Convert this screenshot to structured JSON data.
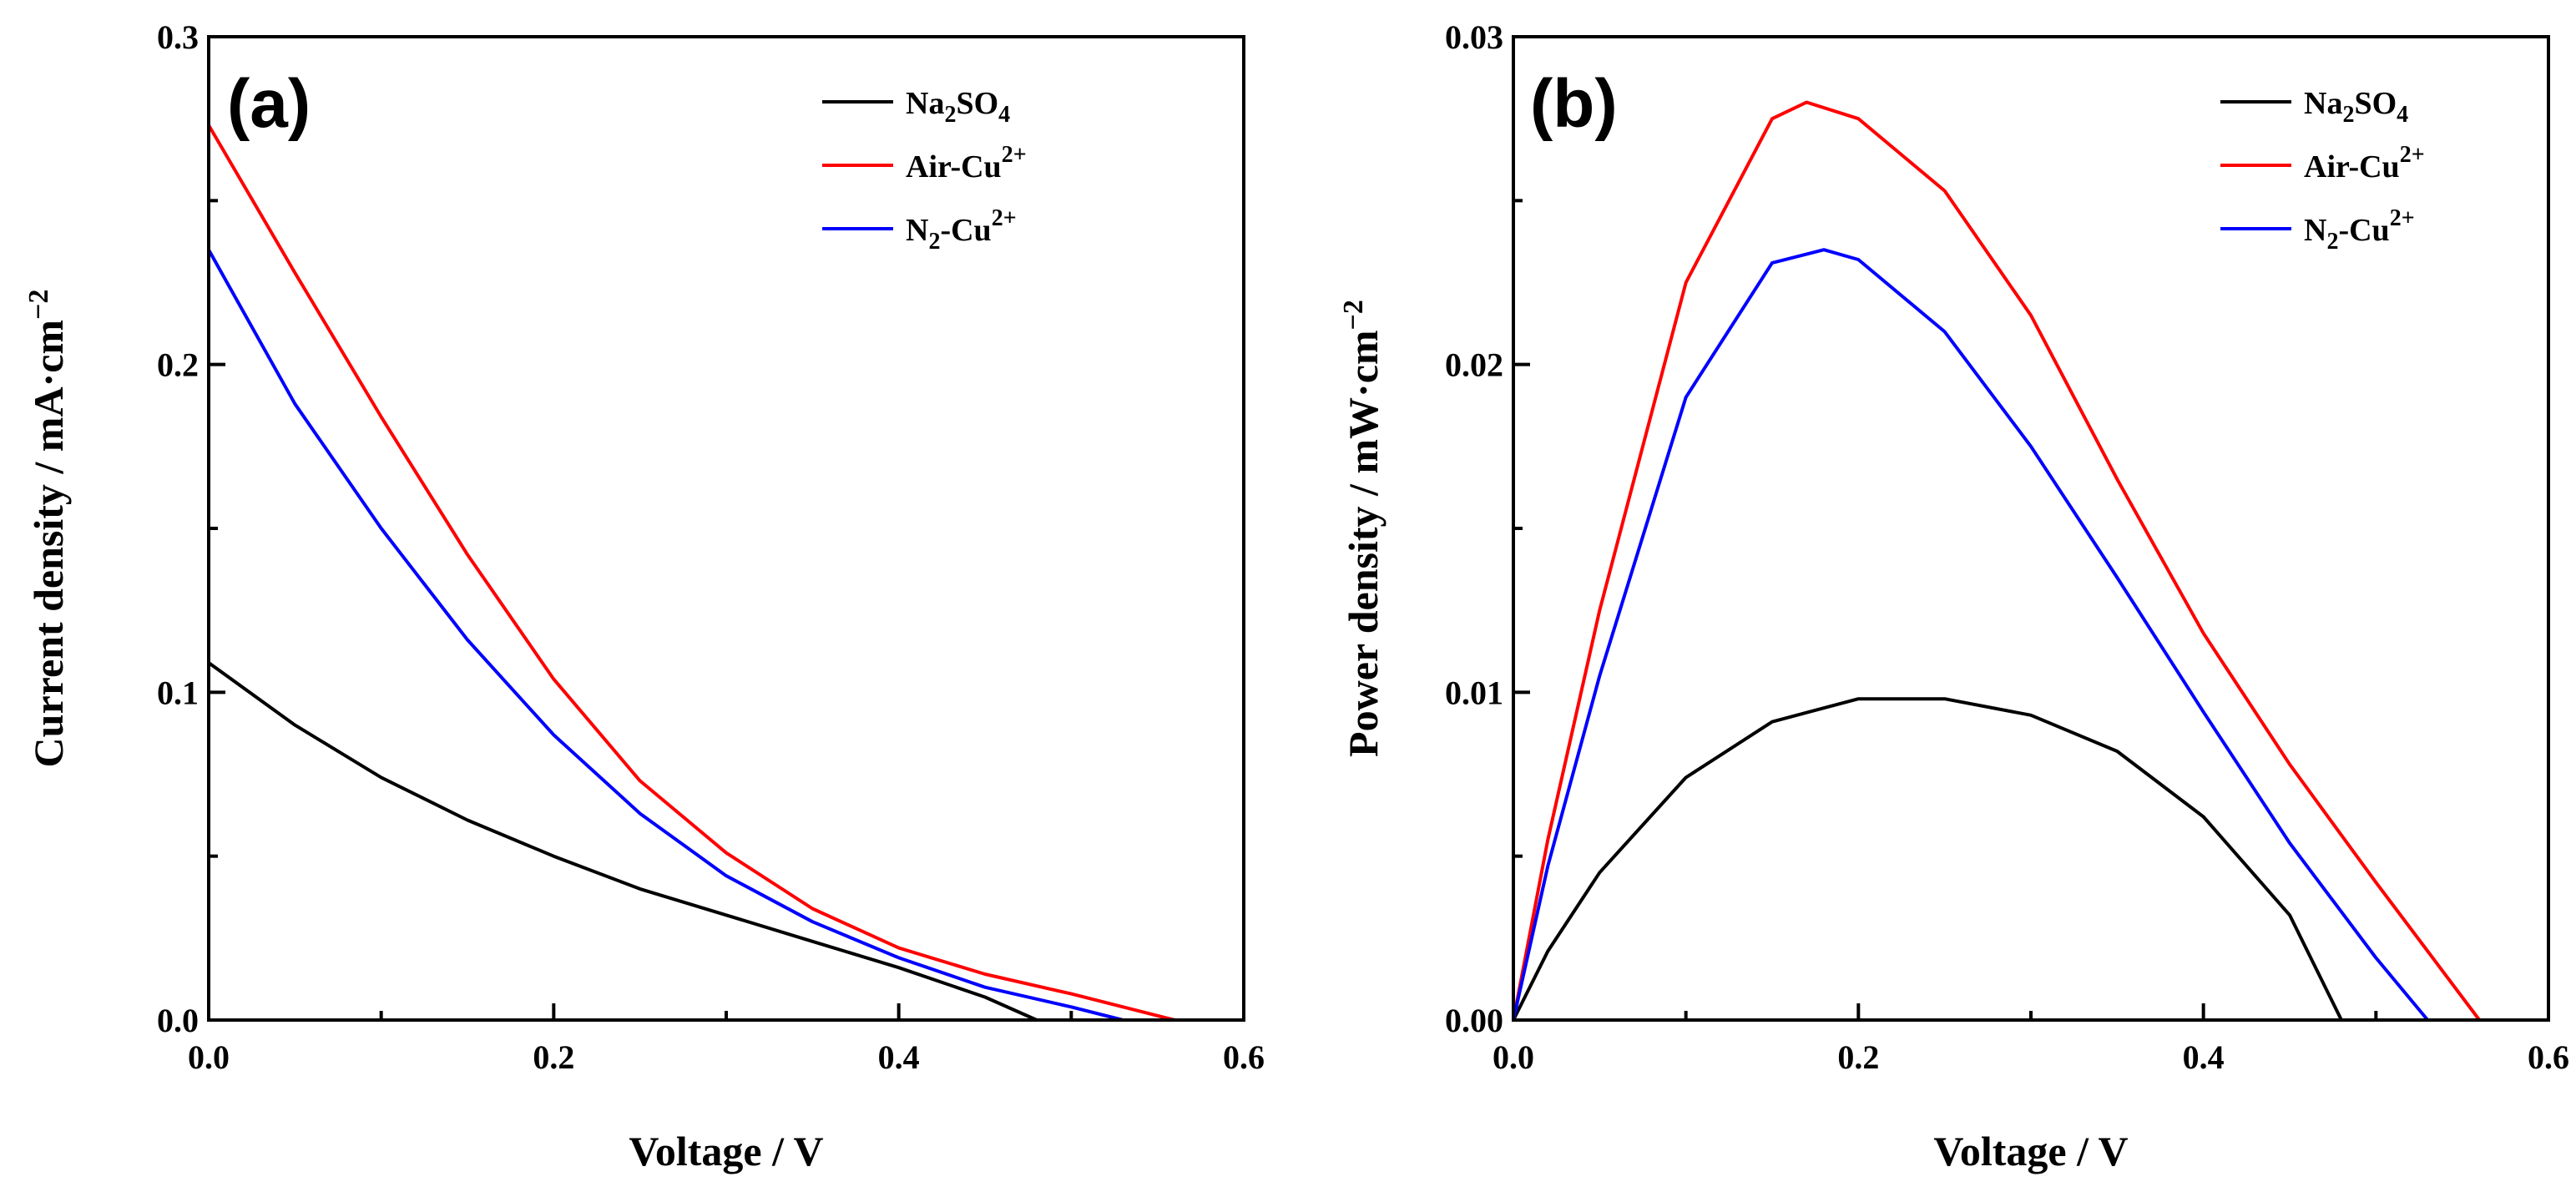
{
  "chart_data": [
    {
      "type": "line",
      "panel_label": "(a)",
      "xlabel": "Voltage / V",
      "ylabel": "Current density / mA·cm",
      "ylabel_sup": "−2",
      "xlim": [
        0.0,
        0.6
      ],
      "ylim": [
        0.0,
        0.3
      ],
      "x_ticks": [
        "0.0",
        "0.2",
        "0.4",
        "0.6"
      ],
      "y_ticks": [
        "0.0",
        "0.1",
        "0.2",
        "0.3"
      ],
      "x_tick_values": [
        0.0,
        0.2,
        0.4,
        0.6
      ],
      "y_tick_values": [
        0.0,
        0.1,
        0.2,
        0.3
      ],
      "grid": false,
      "legend_position": "upper-right",
      "series": [
        {
          "name": "Na2SO4",
          "color": "#000000",
          "x": [
            0.0,
            0.05,
            0.1,
            0.15,
            0.2,
            0.25,
            0.3,
            0.35,
            0.4,
            0.45,
            0.48
          ],
          "y": [
            0.109,
            0.09,
            0.074,
            0.061,
            0.05,
            0.04,
            0.032,
            0.024,
            0.016,
            0.007,
            0.0
          ]
        },
        {
          "name": "Air-Cu2+",
          "color": "#ff0000",
          "x": [
            0.0,
            0.05,
            0.1,
            0.15,
            0.2,
            0.25,
            0.3,
            0.35,
            0.4,
            0.45,
            0.5,
            0.56
          ],
          "y": [
            0.273,
            0.228,
            0.184,
            0.142,
            0.104,
            0.073,
            0.051,
            0.034,
            0.022,
            0.014,
            0.008,
            0.0
          ]
        },
        {
          "name": "N2-Cu2+",
          "color": "#0000ff",
          "x": [
            0.0,
            0.05,
            0.1,
            0.15,
            0.2,
            0.25,
            0.3,
            0.35,
            0.4,
            0.45,
            0.5,
            0.53
          ],
          "y": [
            0.235,
            0.188,
            0.15,
            0.116,
            0.087,
            0.063,
            0.044,
            0.03,
            0.019,
            0.01,
            0.004,
            0.0
          ]
        }
      ],
      "legend": [
        {
          "base": "Na",
          "sub1": "2",
          "mid": "SO",
          "sub2": "4",
          "sup": ""
        },
        {
          "base": "Air-Cu",
          "sub1": "",
          "mid": "",
          "sub2": "",
          "sup": "2+"
        },
        {
          "base": "N",
          "sub1": "2",
          "mid": "-Cu",
          "sub2": "",
          "sup": "2+"
        }
      ]
    },
    {
      "type": "line",
      "panel_label": "(b)",
      "xlabel": "Voltage / V",
      "ylabel": "Power density / mW·cm",
      "ylabel_sup": "−2",
      "xlim": [
        0.0,
        0.6
      ],
      "ylim": [
        0.0,
        0.03
      ],
      "x_ticks": [
        "0.0",
        "0.2",
        "0.4",
        "0.6"
      ],
      "y_ticks": [
        "0.00",
        "0.01",
        "0.02",
        "0.03"
      ],
      "x_tick_values": [
        0.0,
        0.2,
        0.4,
        0.6
      ],
      "y_tick_values": [
        0.0,
        0.01,
        0.02,
        0.03
      ],
      "grid": false,
      "legend_position": "upper-right",
      "series": [
        {
          "name": "Na2SO4",
          "color": "#000000",
          "x": [
            0.0,
            0.02,
            0.05,
            0.1,
            0.15,
            0.2,
            0.25,
            0.3,
            0.35,
            0.4,
            0.45,
            0.48
          ],
          "y": [
            0.0,
            0.0021,
            0.0045,
            0.0074,
            0.0091,
            0.0098,
            0.0098,
            0.0093,
            0.0082,
            0.0062,
            0.0032,
            0.0
          ]
        },
        {
          "name": "Air-Cu2+",
          "color": "#ff0000",
          "x": [
            0.0,
            0.02,
            0.05,
            0.1,
            0.15,
            0.17,
            0.2,
            0.25,
            0.3,
            0.35,
            0.4,
            0.45,
            0.5,
            0.53,
            0.56
          ],
          "y": [
            0.0,
            0.0055,
            0.0125,
            0.0225,
            0.0275,
            0.028,
            0.0275,
            0.0253,
            0.0215,
            0.0165,
            0.0118,
            0.0078,
            0.0042,
            0.0021,
            0.0
          ]
        },
        {
          "name": "N2-Cu2+",
          "color": "#0000ff",
          "x": [
            0.0,
            0.02,
            0.05,
            0.1,
            0.15,
            0.18,
            0.2,
            0.25,
            0.3,
            0.35,
            0.4,
            0.45,
            0.5,
            0.53
          ],
          "y": [
            0.0,
            0.0047,
            0.0105,
            0.019,
            0.0231,
            0.0235,
            0.0232,
            0.021,
            0.0175,
            0.0135,
            0.0094,
            0.0054,
            0.0019,
            0.0
          ]
        }
      ],
      "legend": [
        {
          "base": "Na",
          "sub1": "2",
          "mid": "SO",
          "sub2": "4",
          "sup": ""
        },
        {
          "base": "Air-Cu",
          "sub1": "",
          "mid": "",
          "sub2": "",
          "sup": "2+"
        },
        {
          "base": "N",
          "sub1": "2",
          "mid": "-Cu",
          "sub2": "",
          "sup": "2+"
        }
      ]
    }
  ]
}
